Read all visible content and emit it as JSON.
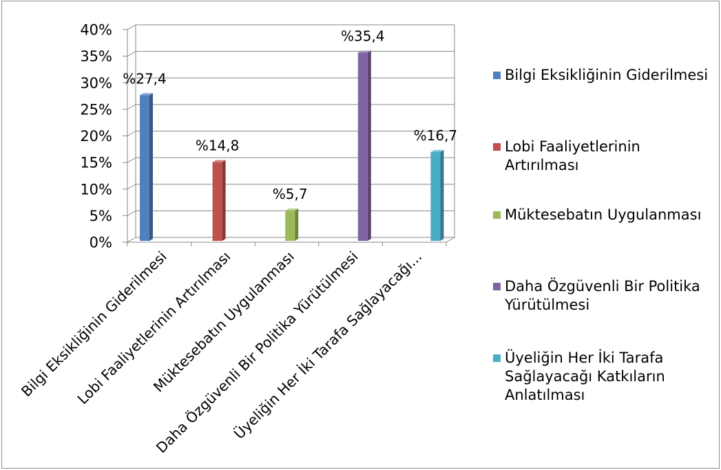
{
  "chart_data": {
    "type": "bar",
    "three_d": true,
    "categories": [
      "Bilgi Eksikliğinin Giderilmesi",
      "Lobi Faaliyetlerinin Artırılması",
      "Müktesebatın Uygulanması",
      "Daha Özgüvenli Bir Politika Yürütülmesi",
      "Üyeliğin Her İki Tarafa Sağlayacağı Katkıların Anlatılması"
    ],
    "x_tick_labels": [
      "Bilgi Eksikliğinin Giderilmesi",
      "Lobi Faaliyetlerinin Artırılması",
      "Müktesebatın Uygulanması",
      "Daha Özgüvenli Bir Politika Yürütülmesi",
      "Üyeliğin Her İki Tarafa Sağlayacağı..."
    ],
    "values": [
      27.4,
      14.8,
      5.7,
      35.4,
      16.7
    ],
    "data_labels": [
      "%27,4",
      "%14,8",
      "%5,7",
      "%35,4",
      "%16,7"
    ],
    "colors": [
      "#4F81BD",
      "#C0504D",
      "#9BBB59",
      "#8064A2",
      "#4BACC6"
    ],
    "ylim": [
      0,
      40
    ],
    "y_ticks": [
      0,
      5,
      10,
      15,
      20,
      25,
      30,
      35,
      40
    ],
    "y_tick_labels": [
      "0%",
      "5%",
      "10%",
      "15%",
      "20%",
      "25%",
      "30%",
      "35%",
      "40%"
    ],
    "grid": true,
    "legend_position": "right"
  }
}
